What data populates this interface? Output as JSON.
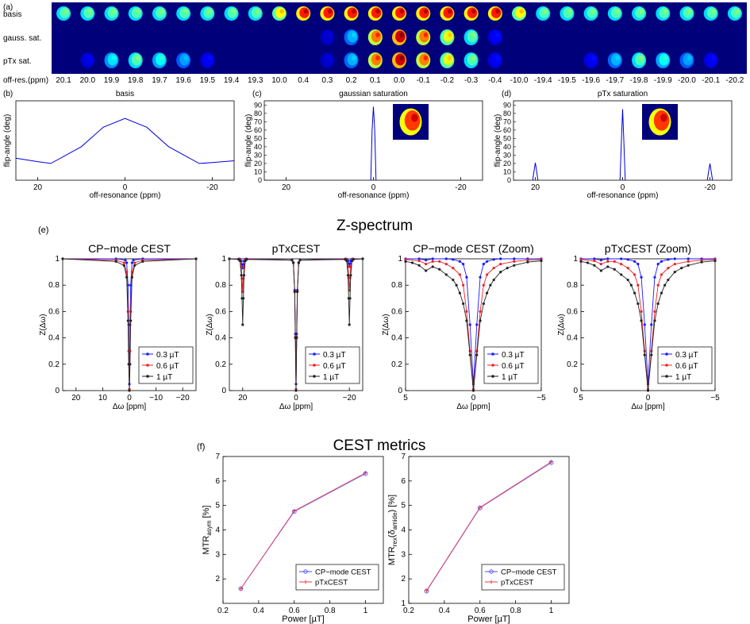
{
  "panel_labels": {
    "a": "(a)",
    "b": "(b)",
    "c": "(c)",
    "d": "(d)",
    "e": "(e)",
    "f": "(f)"
  },
  "strip": {
    "row_labels": [
      "basis",
      "gauss. sat.",
      "pTx sat."
    ],
    "offres_label": "off-res.(ppm)",
    "offsets": [
      "20.1",
      "20.0",
      "19.9",
      "19.8",
      "19.7",
      "19.6",
      "19.5",
      "19.4",
      "19.3",
      "10.0",
      "0.4",
      "0.3",
      "0.2",
      "0.1",
      "0.0",
      "-0.1",
      "-0.2",
      "-0.3",
      "-0.4",
      "-10.0",
      "-19.4",
      "-19.5",
      "-19.6",
      "-19.7",
      "-19.8",
      "-19.9",
      "-20.0",
      "-20.1",
      "-20.2"
    ],
    "basis_intensity": [
      0.45,
      0.45,
      0.45,
      0.45,
      0.45,
      0.45,
      0.45,
      0.45,
      0.45,
      0.62,
      0.85,
      0.85,
      0.85,
      0.85,
      0.85,
      0.85,
      0.85,
      0.85,
      0.85,
      0.62,
      0.45,
      0.45,
      0.45,
      0.45,
      0.45,
      0.45,
      0.45,
      0.45,
      0.45
    ],
    "gauss_intensity": [
      0,
      0,
      0,
      0,
      0,
      0,
      0,
      0,
      0,
      0,
      0,
      0.08,
      0.3,
      0.75,
      0.92,
      0.75,
      0.6,
      0.45,
      0.12,
      0,
      0,
      0,
      0,
      0,
      0,
      0,
      0,
      0,
      0
    ],
    "ptx_intensity": [
      0,
      0.1,
      0.35,
      0.45,
      0.38,
      0.28,
      0.12,
      0,
      0,
      0,
      0,
      0.08,
      0.3,
      0.75,
      0.92,
      0.75,
      0.6,
      0.45,
      0.12,
      0,
      0,
      0,
      0.12,
      0.3,
      0.45,
      0.38,
      0.28,
      0.12,
      0
    ]
  },
  "top_charts": [
    {
      "title": "basis",
      "xlabel": "off-resonance (ppm)",
      "ylabel": "flip-angle (deg)",
      "xticks": [
        "20",
        "0",
        "-20"
      ],
      "yticks": [],
      "inset": false
    },
    {
      "title": "gaussian saturation",
      "xlabel": "off-resonance (ppm)",
      "ylabel": "flip-angle (deg)",
      "xticks": [
        "20",
        "0",
        "-20"
      ],
      "yticks": [
        "0",
        "10",
        "20",
        "30",
        "40",
        "50",
        "60",
        "70",
        "80",
        "90"
      ],
      "inset": true
    },
    {
      "title": "pTx saturation",
      "xlabel": "off-resonance (ppm)",
      "ylabel": "flip-angle (deg)",
      "xticks": [
        "20",
        "0",
        "-20"
      ],
      "yticks": [
        "0",
        "10",
        "20",
        "30",
        "40",
        "50",
        "60",
        "70",
        "80",
        "90"
      ],
      "inset": true
    }
  ],
  "z_section": {
    "title": "Z-spectrum",
    "legend": [
      "0.3 µT",
      "0.6 µT",
      "1 µT"
    ],
    "xlabel": "Δω [ppm]",
    "ylabel": "Z(Δω)",
    "yticks": [
      "0",
      "0.2",
      "0.4",
      "0.6",
      "0.8",
      "1"
    ],
    "colors": [
      "#1a1aff",
      "#ee2222",
      "#222222"
    ],
    "panels": [
      {
        "title": "CP−mode CEST",
        "xticks": [
          "20",
          "10",
          "0",
          "−10",
          "−20"
        ]
      },
      {
        "title": "pTxCEST",
        "xticks": [
          "20",
          "0",
          "−20"
        ]
      },
      {
        "title": "CP−mode CEST (Zoom)",
        "xticks": [
          "5",
          "0",
          "−5"
        ]
      },
      {
        "title": "pTxCEST (Zoom)",
        "xticks": [
          "5",
          "0",
          "−5"
        ]
      }
    ]
  },
  "metrics": {
    "title": "CEST metrics",
    "legend": [
      "CP−mode CEST",
      "pTxCEST"
    ],
    "xlabel": "Power [µT]",
    "xticks": [
      "0.2",
      "0.4",
      "0.6",
      "0.8",
      "1"
    ],
    "panels": [
      {
        "ylabel_main": "MTR",
        "ylabel_sub": "asym",
        "ylabel_tail": " [%]",
        "yticks": [
          "2",
          "3",
          "4",
          "5",
          "6",
          "7"
        ]
      },
      {
        "ylabel_main": "MTR",
        "ylabel_sub": "rex",
        "ylabel_mid": "(δ",
        "ylabel_sub2": "amide",
        "ylabel_tail": ") [%]",
        "yticks": [
          "1",
          "2",
          "3",
          "4",
          "5",
          "6",
          "7"
        ]
      }
    ]
  },
  "chart_data": [
    {
      "type": "line",
      "title": "basis",
      "xlabel": "off-resonance (ppm)",
      "ylabel": "flip-angle (deg)",
      "xlim": [
        25,
        -25
      ],
      "ylim": [
        0,
        4.5
      ],
      "series": [
        {
          "name": "basis",
          "x": [
            25,
            20,
            17,
            10,
            5,
            0,
            -5,
            -10,
            -17,
            -20,
            -25
          ],
          "y": [
            1.25,
            1.05,
            0.95,
            1.9,
            3.0,
            3.5,
            3.0,
            1.9,
            0.95,
            1.0,
            1.1
          ]
        }
      ]
    },
    {
      "type": "line",
      "title": "gaussian saturation",
      "xlabel": "off-resonance (ppm)",
      "ylabel": "flip-angle (deg)",
      "xlim": [
        25,
        -25
      ],
      "ylim": [
        0,
        95
      ],
      "series": [
        {
          "name": "gaussian",
          "x": [
            0.6,
            0.3,
            0,
            -0.3,
            -0.6
          ],
          "y": [
            0,
            60,
            88,
            60,
            0
          ]
        }
      ]
    },
    {
      "type": "line",
      "title": "pTx saturation",
      "xlabel": "off-resonance (ppm)",
      "ylabel": "flip-angle (deg)",
      "xlim": [
        25,
        -25
      ],
      "ylim": [
        0,
        95
      ],
      "series": [
        {
          "name": "pTx",
          "peaks": [
            {
              "x": 20,
              "y": 21
            },
            {
              "x": 0,
              "y": 85
            },
            {
              "x": -20,
              "y": 20
            }
          ]
        }
      ]
    },
    {
      "type": "line",
      "title": "CP−mode CEST",
      "xlabel": "Δω [ppm]",
      "ylabel": "Z(Δω)",
      "xlim": [
        25,
        -25
      ],
      "ylim": [
        0,
        1
      ],
      "series": [
        {
          "name": "0.3 µT",
          "x": [
            25,
            5,
            1.5,
            1,
            0.5,
            0.25,
            0,
            -0.25,
            -0.5,
            -1,
            -1.5,
            -5,
            -25
          ],
          "y": [
            1,
            1,
            0.99,
            0.97,
            0.8,
            0.5,
            0.05,
            0.5,
            0.8,
            0.97,
            0.99,
            1,
            1
          ]
        },
        {
          "name": "0.6 µT",
          "x": [
            25,
            5,
            2,
            1,
            0.5,
            0.25,
            0,
            -0.25,
            -0.5,
            -1,
            -2,
            -5,
            -25
          ],
          "y": [
            1,
            0.99,
            0.97,
            0.9,
            0.6,
            0.3,
            0.01,
            0.3,
            0.6,
            0.9,
            0.97,
            0.99,
            1
          ]
        },
        {
          "name": "1 µT",
          "x": [
            25,
            5,
            2,
            1,
            0.5,
            0.25,
            0,
            -0.25,
            -0.5,
            -1,
            -2,
            -5,
            -25
          ],
          "y": [
            1,
            0.98,
            0.95,
            0.86,
            0.53,
            0.2,
            0.0,
            0.2,
            0.53,
            0.86,
            0.95,
            0.98,
            1
          ]
        }
      ]
    },
    {
      "type": "line",
      "title": "pTxCEST",
      "xlabel": "Δω [ppm]",
      "ylabel": "Z(Δω)",
      "xlim": [
        25,
        -25
      ],
      "ylim": [
        0,
        1
      ],
      "series": [
        {
          "name": "0.3 µT",
          "dips": [
            {
              "x": 20,
              "y": 0.93
            },
            {
              "x": 0,
              "y": 0.05
            },
            {
              "x": -20,
              "y": 0.94
            }
          ]
        },
        {
          "name": "0.6 µT",
          "dips": [
            {
              "x": 20,
              "y": 0.75
            },
            {
              "x": 0,
              "y": 0.01
            },
            {
              "x": -20,
              "y": 0.76
            }
          ]
        },
        {
          "name": "1 µT",
          "dips": [
            {
              "x": 20,
              "y": 0.5
            },
            {
              "x": 0,
              "y": 0.0
            },
            {
              "x": -20,
              "y": 0.5
            }
          ]
        }
      ]
    },
    {
      "type": "line",
      "title": "CP−mode CEST (Zoom)",
      "xlabel": "Δω [ppm]",
      "ylabel": "Z(Δω)",
      "xlim": [
        5,
        -5
      ],
      "ylim": [
        0,
        1
      ],
      "series": [
        {
          "name": "0.3 µT",
          "x": [
            5,
            4,
            3.5,
            3,
            2,
            1.5,
            1,
            0.75,
            0.5,
            0.25,
            0,
            -0.25,
            -0.5,
            -0.75,
            -1,
            -1.5,
            -2,
            -3,
            -4,
            -5
          ],
          "y": [
            1,
            1,
            0.99,
            1,
            1,
            0.995,
            0.98,
            0.96,
            0.86,
            0.5,
            0.05,
            0.5,
            0.86,
            0.96,
            0.98,
            0.995,
            1,
            1,
            1,
            1
          ]
        },
        {
          "name": "0.6 µT",
          "x": [
            5,
            4,
            3.5,
            3,
            2.5,
            2,
            1.5,
            1,
            0.75,
            0.5,
            0.25,
            0,
            -0.25,
            -0.5,
            -0.75,
            -1,
            -1.5,
            -2,
            -3,
            -4,
            -5
          ],
          "y": [
            0.995,
            0.985,
            0.96,
            0.98,
            0.98,
            0.96,
            0.93,
            0.88,
            0.8,
            0.6,
            0.3,
            0.01,
            0.3,
            0.6,
            0.8,
            0.88,
            0.93,
            0.96,
            0.98,
            0.99,
            0.995
          ]
        },
        {
          "name": "1 µT",
          "x": [
            5,
            4.5,
            4,
            3.5,
            3,
            2.5,
            2,
            1.5,
            1.25,
            1,
            0.75,
            0.5,
            0.25,
            0,
            -0.25,
            -0.5,
            -0.75,
            -1,
            -1.25,
            -1.5,
            -2,
            -2.5,
            -3,
            -4,
            -5
          ],
          "y": [
            0.98,
            0.97,
            0.95,
            0.91,
            0.94,
            0.92,
            0.88,
            0.84,
            0.8,
            0.74,
            0.66,
            0.53,
            0.27,
            0.0,
            0.27,
            0.53,
            0.66,
            0.74,
            0.8,
            0.84,
            0.9,
            0.93,
            0.95,
            0.975,
            0.985
          ]
        }
      ]
    },
    {
      "type": "line",
      "title": "pTxCEST (Zoom)",
      "xlabel": "Δω [ppm]",
      "ylabel": "Z(Δω)",
      "xlim": [
        5,
        -5
      ],
      "ylim": [
        0,
        1
      ],
      "series": [
        {
          "name": "0.3 µT",
          "x": [
            5,
            4,
            3.5,
            3,
            2,
            1.5,
            1,
            0.75,
            0.5,
            0.25,
            0,
            -0.25,
            -0.5,
            -0.75,
            -1,
            -1.5,
            -2,
            -3,
            -4,
            -5
          ],
          "y": [
            1,
            1,
            0.99,
            1,
            1,
            0.995,
            0.98,
            0.96,
            0.86,
            0.5,
            0.05,
            0.5,
            0.86,
            0.96,
            0.98,
            0.995,
            1,
            1,
            1,
            1
          ]
        },
        {
          "name": "0.6 µT",
          "x": [
            5,
            4,
            3.5,
            3,
            2.5,
            2,
            1.5,
            1,
            0.75,
            0.5,
            0.25,
            0,
            -0.25,
            -0.5,
            -0.75,
            -1,
            -1.5,
            -2,
            -3,
            -4,
            -5
          ],
          "y": [
            0.995,
            0.985,
            0.96,
            0.98,
            0.98,
            0.96,
            0.93,
            0.88,
            0.8,
            0.6,
            0.3,
            0.01,
            0.3,
            0.6,
            0.8,
            0.88,
            0.93,
            0.96,
            0.98,
            0.99,
            0.995
          ]
        },
        {
          "name": "1 µT",
          "x": [
            5,
            4.5,
            4,
            3.5,
            3,
            2.5,
            2,
            1.5,
            1.25,
            1,
            0.75,
            0.5,
            0.25,
            0,
            -0.25,
            -0.5,
            -0.75,
            -1,
            -1.25,
            -1.5,
            -2,
            -2.5,
            -3,
            -4,
            -5
          ],
          "y": [
            0.98,
            0.97,
            0.95,
            0.91,
            0.94,
            0.92,
            0.88,
            0.84,
            0.8,
            0.74,
            0.66,
            0.53,
            0.27,
            0.0,
            0.27,
            0.53,
            0.66,
            0.74,
            0.8,
            0.84,
            0.9,
            0.93,
            0.95,
            0.975,
            0.985
          ]
        }
      ]
    },
    {
      "type": "line",
      "title": "MTRasym",
      "xlabel": "Power [µT]",
      "ylabel": "MTRasym [%]",
      "xlim": [
        0.2,
        1.1
      ],
      "ylim": [
        1,
        7
      ],
      "series": [
        {
          "name": "CP−mode CEST",
          "x": [
            0.3,
            0.6,
            1.0
          ],
          "y": [
            1.6,
            4.75,
            6.3
          ]
        },
        {
          "name": "pTxCEST",
          "x": [
            0.3,
            0.6,
            1.0
          ],
          "y": [
            1.6,
            4.78,
            6.33
          ]
        }
      ]
    },
    {
      "type": "line",
      "title": "MTRrex(δamide)",
      "xlabel": "Power [µT]",
      "ylabel": "MTRrex(δamide) [%]",
      "xlim": [
        0.2,
        1.1
      ],
      "ylim": [
        1,
        7
      ],
      "series": [
        {
          "name": "CP−mode CEST",
          "x": [
            0.3,
            0.6,
            1.0
          ],
          "y": [
            1.5,
            4.9,
            6.75
          ]
        },
        {
          "name": "pTxCEST",
          "x": [
            0.3,
            0.6,
            1.0
          ],
          "y": [
            1.52,
            4.92,
            6.78
          ]
        }
      ]
    }
  ]
}
